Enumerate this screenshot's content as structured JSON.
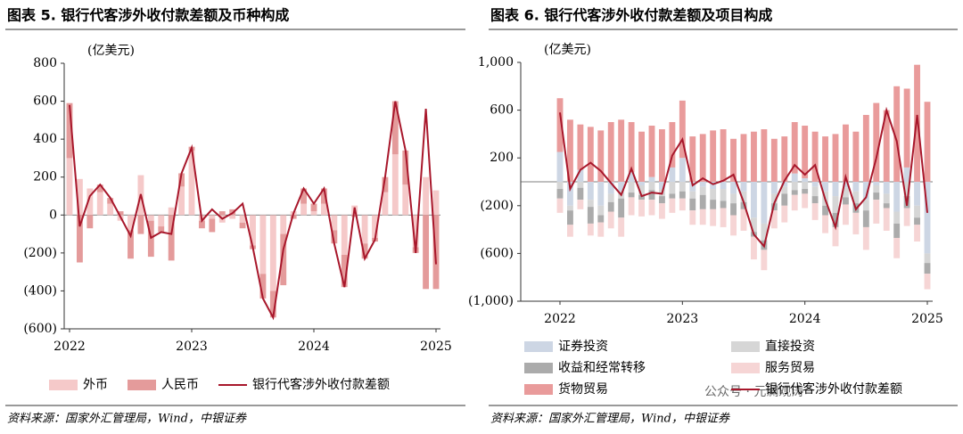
{
  "chart_data": [
    {
      "type": "combo",
      "title": "图表 5. 银行代客涉外收付款差额及币种构成",
      "unit_label": "(亿美元)",
      "source": "资料来源：国家外汇管理局，Wind，中银证券",
      "categories": [
        "2022",
        null,
        null,
        null,
        null,
        null,
        null,
        null,
        null,
        null,
        null,
        null,
        "2023",
        null,
        null,
        null,
        null,
        null,
        null,
        null,
        null,
        null,
        null,
        null,
        "2024",
        null,
        null,
        null,
        null,
        null,
        null,
        null,
        null,
        null,
        null,
        null,
        "2025"
      ],
      "ylim": [
        -600,
        800
      ],
      "yticks": [
        {
          "value": -600,
          "label": "(600)"
        },
        {
          "value": -400,
          "label": "(400)"
        },
        {
          "value": -200,
          "label": "(200)"
        },
        0,
        200,
        400,
        600,
        800
      ],
      "series": [
        {
          "name": "外币",
          "type": "bar",
          "color": "#f5c9c9",
          "values": [
            300,
            190,
            140,
            120,
            60,
            -30,
            -80,
            210,
            -30,
            -60,
            40,
            150,
            340,
            -30,
            -20,
            -40,
            -20,
            -40,
            -160,
            -310,
            -400,
            -100,
            20,
            60,
            20,
            60,
            -80,
            -210,
            50,
            -150,
            -120,
            120,
            320,
            160,
            -170,
            200,
            130
          ]
        },
        {
          "name": "人民币",
          "type": "bar",
          "color": "#e49b9b",
          "values": [
            290,
            -250,
            -70,
            40,
            30,
            20,
            -150,
            -100,
            -190,
            -30,
            -240,
            70,
            20,
            -40,
            -70,
            20,
            30,
            -30,
            -20,
            -130,
            -140,
            -270,
            -20,
            80,
            40,
            80,
            -70,
            -170,
            -10,
            -80,
            -20,
            80,
            280,
            180,
            -30,
            -390,
            -390
          ]
        },
        {
          "name": "银行代客涉外收付款差额",
          "type": "line",
          "color": "#a8172b",
          "values": [
            580,
            -60,
            100,
            160,
            90,
            -10,
            -110,
            110,
            -120,
            -90,
            -100,
            220,
            355,
            -30,
            30,
            -20,
            10,
            60,
            -170,
            -440,
            -540,
            -180,
            10,
            140,
            60,
            140,
            -150,
            -380,
            40,
            -230,
            -130,
            200,
            600,
            340,
            -200,
            560,
            -260
          ]
        }
      ]
    },
    {
      "type": "combo",
      "title": "图表 6. 银行代客涉外收付款差额及项目构成",
      "unit_label": "(亿美元)",
      "source": "资料来源：国家外汇管理局，Wind，中银证券",
      "watermark": "公众号 · 元澜观涛",
      "categories": [
        "2022",
        null,
        null,
        null,
        null,
        null,
        null,
        null,
        null,
        null,
        null,
        null,
        "2023",
        null,
        null,
        null,
        null,
        null,
        null,
        null,
        null,
        null,
        null,
        null,
        "2024",
        null,
        null,
        null,
        null,
        null,
        null,
        null,
        null,
        null,
        null,
        null,
        "2025"
      ],
      "ylim": [
        -1000,
        1000
      ],
      "yticks": [
        {
          "value": -1000,
          "label": "(1,000)"
        },
        {
          "value": -600,
          "label": "(600)"
        },
        {
          "value": -200,
          "label": "(200)"
        },
        200,
        600,
        {
          "value": 1000,
          "label": "1,000"
        }
      ],
      "series": [
        {
          "name": "证券投资",
          "type": "bar",
          "color": "#cdd6e4",
          "values": [
            250,
            -200,
            100,
            -150,
            -200,
            -100,
            -80,
            80,
            -30,
            40,
            -60,
            120,
            200,
            -80,
            -40,
            -60,
            -60,
            -100,
            -80,
            -300,
            -350,
            -100,
            -40,
            70,
            30,
            -40,
            -80,
            -120,
            -50,
            -80,
            -150,
            -30,
            -100,
            -250,
            120,
            -200,
            -600
          ]
        },
        {
          "name": "直接投资",
          "type": "bar",
          "color": "#d6d6d6",
          "values": [
            -60,
            -40,
            -50,
            -60,
            -80,
            -70,
            -60,
            -90,
            -80,
            -70,
            -60,
            -100,
            -80,
            -60,
            -70,
            -90,
            -100,
            -80,
            -90,
            -120,
            -140,
            -80,
            -60,
            -70,
            -60,
            -80,
            -120,
            -140,
            -80,
            -100,
            -90,
            -60,
            -80,
            -100,
            -120,
            -100,
            -80
          ]
        },
        {
          "name": "收益和经常转移",
          "type": "bar",
          "color": "#ababab",
          "values": [
            -80,
            -120,
            -100,
            -140,
            -60,
            -80,
            -160,
            -40,
            -40,
            -80,
            -60,
            -40,
            -60,
            -100,
            -120,
            -80,
            -60,
            -100,
            -60,
            -40,
            -80,
            -60,
            -100,
            -40,
            -40,
            -60,
            -80,
            -120,
            -60,
            -80,
            -140,
            -60,
            -40,
            -120,
            -100,
            -60,
            -90
          ]
        },
        {
          "name": "服务贸易",
          "type": "bar",
          "color": "#f6d5d5",
          "values": [
            -120,
            -100,
            -80,
            -100,
            -120,
            -140,
            -160,
            -150,
            -140,
            -130,
            -130,
            -120,
            -100,
            -120,
            -130,
            -140,
            -160,
            -170,
            -180,
            -190,
            -170,
            -150,
            -140,
            -130,
            -120,
            -140,
            -150,
            -160,
            -170,
            -180,
            -190,
            -200,
            -190,
            -170,
            -150,
            -140,
            -130
          ]
        },
        {
          "name": "货物贸易",
          "type": "bar",
          "color": "#e99b9b",
          "values": [
            450,
            520,
            380,
            460,
            430,
            500,
            520,
            420,
            420,
            430,
            440,
            380,
            480,
            380,
            400,
            430,
            440,
            360,
            400,
            420,
            440,
            360,
            380,
            430,
            440,
            420,
            380,
            400,
            480,
            420,
            560,
            660,
            600,
            800,
            660,
            980,
            670
          ]
        },
        {
          "name": "银行代客涉外收付款差额",
          "type": "line",
          "color": "#a8172b",
          "values": [
            580,
            -60,
            100,
            160,
            90,
            -10,
            -110,
            110,
            -120,
            -90,
            -100,
            220,
            355,
            -30,
            30,
            -20,
            10,
            60,
            -170,
            -440,
            -540,
            -180,
            10,
            140,
            60,
            140,
            -150,
            -380,
            40,
            -230,
            -130,
            200,
            600,
            340,
            -200,
            560,
            -260
          ]
        }
      ]
    }
  ]
}
